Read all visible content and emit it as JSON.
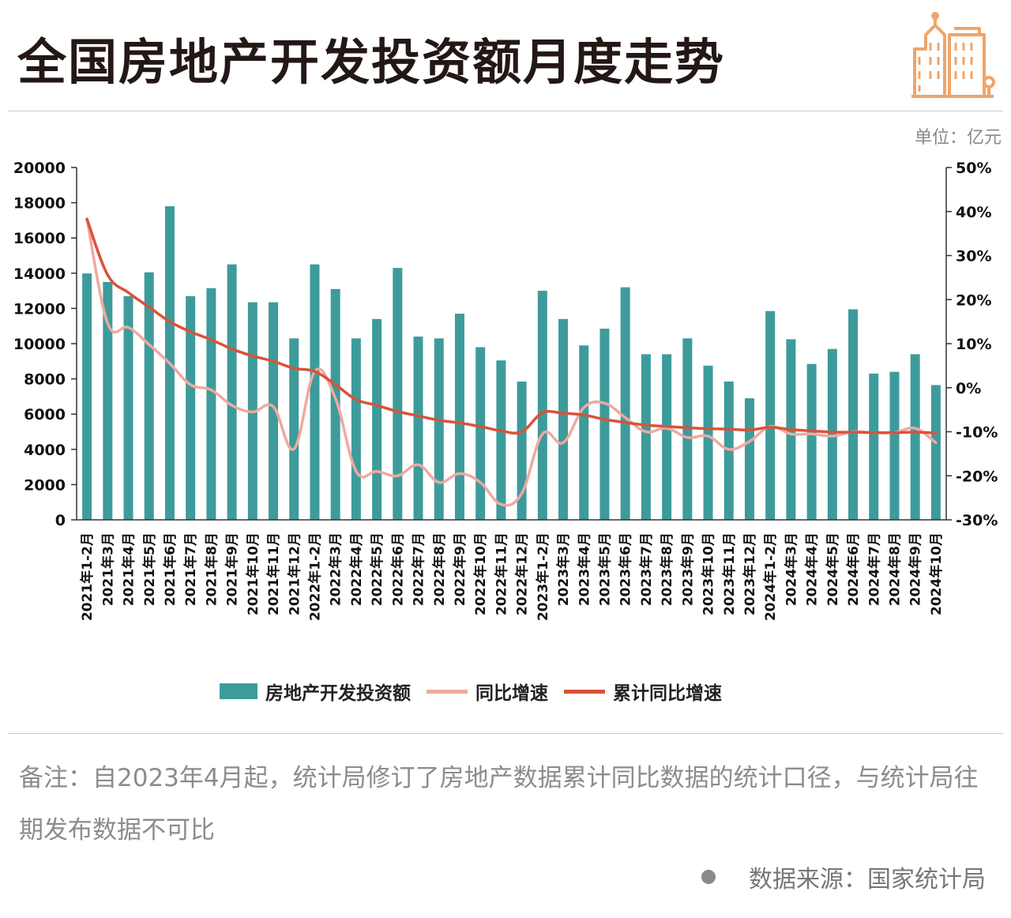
{
  "header": {
    "title": "全国房地产开发投资额月度走势",
    "logo_icon": "buildings-icon"
  },
  "unit_label": "单位：亿元",
  "colors": {
    "bar": "#3e9b9b",
    "yoy_line": "#efa9a0",
    "cum_line": "#d9533a",
    "logo": "#f0a469"
  },
  "chart_data": {
    "type": "bar",
    "title": "全国房地产开发投资额月度走势",
    "categories": [
      "2021年1-2月",
      "2021年3月",
      "2021年4月",
      "2021年5月",
      "2021年6月",
      "2021年7月",
      "2021年8月",
      "2021年9月",
      "2021年10月",
      "2021年11月",
      "2021年12月",
      "2022年1-2月",
      "2022年3月",
      "2022年4月",
      "2022年5月",
      "2022年6月",
      "2022年7月",
      "2022年8月",
      "2022年9月",
      "2022年10月",
      "2022年11月",
      "2022年12月",
      "2023年1-2月",
      "2023年3月",
      "2023年4月",
      "2023年5月",
      "2023年6月",
      "2023年7月",
      "2023年8月",
      "2023年9月",
      "2023年10月",
      "2023年11月",
      "2023年12月",
      "2024年1-2月",
      "2024年3月",
      "2024年4月",
      "2024年5月",
      "2024年6月",
      "2024年7月",
      "2024年8月",
      "2024年9月",
      "2024年10月"
    ],
    "series": [
      {
        "name": "房地产开发投资额",
        "type": "bar",
        "axis": "left",
        "values": [
          13986,
          13500,
          12700,
          14050,
          17800,
          12700,
          13150,
          14500,
          12350,
          12350,
          10300,
          14500,
          13100,
          10300,
          11400,
          14300,
          10400,
          10300,
          11700,
          9800,
          9050,
          7850,
          13000,
          11400,
          9900,
          10850,
          13200,
          9400,
          9400,
          10300,
          8750,
          7850,
          6900,
          11850,
          10250,
          8850,
          9700,
          11950,
          8300,
          8400,
          9400,
          7650
        ]
      },
      {
        "name": "同比增速",
        "type": "line",
        "axis": "right",
        "values": [
          38.3,
          14.6,
          13.7,
          9.8,
          5.5,
          0.7,
          -0.5,
          -4.0,
          -5.5,
          -4.3,
          -13.9,
          3.7,
          -2.4,
          -19.0,
          -19.0,
          -20.0,
          -17.5,
          -21.5,
          -19.5,
          -21.5,
          -26.5,
          -24.0,
          -10.5,
          -12.5,
          -4.5,
          -3.5,
          -6.8,
          -10.0,
          -9.2,
          -11.3,
          -11.0,
          -14.0,
          -12.2,
          -8.8,
          -10.5,
          -10.5,
          -11.0,
          -10.0,
          -10.2,
          -10.2,
          -9.2,
          -12.5
        ]
      },
      {
        "name": "累计同比增速",
        "type": "line",
        "axis": "right",
        "values": [
          38.3,
          25.6,
          21.6,
          18.3,
          15.0,
          12.7,
          10.9,
          8.8,
          7.2,
          6.0,
          4.4,
          3.7,
          0.7,
          -2.7,
          -4.0,
          -5.4,
          -6.4,
          -7.4,
          -8.0,
          -8.8,
          -9.8,
          -10.0,
          -5.7,
          -5.8,
          -6.2,
          -7.2,
          -7.9,
          -8.5,
          -8.8,
          -9.1,
          -9.3,
          -9.4,
          -9.6,
          -9.0,
          -9.5,
          -9.8,
          -10.1,
          -10.1,
          -10.2,
          -10.2,
          -10.1,
          -10.3
        ]
      }
    ],
    "y_left": {
      "min": 0,
      "max": 20000,
      "step": 2000,
      "ticks": [
        "0",
        "2000",
        "4000",
        "6000",
        "8000",
        "10000",
        "12000",
        "14000",
        "16000",
        "18000",
        "20000"
      ]
    },
    "y_right": {
      "min": -30,
      "max": 50,
      "step": 10,
      "ticks": [
        "-30%",
        "-20%",
        "-10%",
        "0%",
        "10%",
        "20%",
        "30%",
        "40%",
        "50%"
      ]
    },
    "grid": false,
    "legend_position": "bottom"
  },
  "legend": {
    "bar_label": "房地产开发投资额",
    "yoy_label": "同比增速",
    "cum_label": "累计同比增速"
  },
  "footer": {
    "note": "备注：自2023年4月起，统计局修订了房地产数据累计同比数据的统计口径，与统计局往期发布数据不可比",
    "source": "数据来源：国家统计局"
  }
}
